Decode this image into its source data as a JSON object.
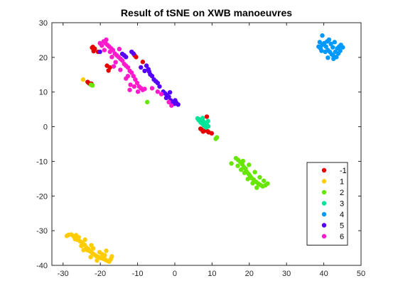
{
  "chart_data": {
    "type": "scatter",
    "title": "Result of tSNE on XWB manoeuvres",
    "xlabel": "",
    "ylabel": "",
    "xlim": [
      -33,
      50
    ],
    "ylim": [
      -40,
      30
    ],
    "xticks": [
      -30,
      -20,
      -10,
      0,
      10,
      20,
      30,
      40,
      50
    ],
    "yticks": [
      -40,
      -30,
      -20,
      -10,
      0,
      10,
      20,
      30
    ],
    "grid": false,
    "legend_position": "lower-right",
    "series": [
      {
        "name": "-1",
        "color": "#e60000",
        "points": [
          [
            -22,
            23
          ],
          [
            -21.5,
            22.5
          ],
          [
            -21.8,
            21.8
          ],
          [
            -22.2,
            22.8
          ],
          [
            -20.6,
            21.6
          ],
          [
            -17.8,
            16.2
          ],
          [
            -17.4,
            17.1
          ],
          [
            -18.2,
            17.6
          ],
          [
            -10.8,
            20.6
          ],
          [
            -10.4,
            20.1
          ],
          [
            -8.6,
            18.7
          ],
          [
            -22.4,
            12.4
          ],
          [
            -23.4,
            12.9
          ],
          [
            -23.0,
            12.5
          ],
          [
            8.6,
            2.9
          ],
          [
            6.9,
            -0.6
          ],
          [
            7.6,
            -1.4
          ],
          [
            8.2,
            -1.1
          ],
          [
            9.1,
            -1.6
          ],
          [
            9.9,
            -1.9
          ],
          [
            7.3,
            -0.9
          ],
          [
            8.8,
            -1.3
          ]
        ]
      },
      {
        "name": "1",
        "color": "#ffcc00",
        "points": [
          [
            -24.6,
            13.6
          ],
          [
            -29,
            -31.5
          ],
          [
            -28.5,
            -31.2
          ],
          [
            -27.8,
            -31.1
          ],
          [
            -27.2,
            -31.6
          ],
          [
            -26.5,
            -31.3
          ],
          [
            -25.8,
            -31.9
          ],
          [
            -26.2,
            -32.6
          ],
          [
            -25.4,
            -33.1
          ],
          [
            -24.8,
            -33.5
          ],
          [
            -24.2,
            -34.1
          ],
          [
            -23.8,
            -34.8
          ],
          [
            -23.2,
            -35.3
          ],
          [
            -22.8,
            -35.9
          ],
          [
            -22.2,
            -36.4
          ],
          [
            -21.6,
            -36.9
          ],
          [
            -21.1,
            -37.3
          ],
          [
            -20.5,
            -37.6
          ],
          [
            -19.8,
            -37.9
          ],
          [
            -19.2,
            -38.1
          ],
          [
            -18.6,
            -38.4
          ],
          [
            -18.1,
            -38.7
          ],
          [
            -17.6,
            -38.9
          ],
          [
            -17.2,
            -38.2
          ],
          [
            -18.8,
            -37.1
          ],
          [
            -20.2,
            -36.2
          ],
          [
            -22.4,
            -34.2
          ],
          [
            -24.1,
            -32.6
          ],
          [
            -25.1,
            -34.4
          ],
          [
            -23.5,
            -35.6
          ],
          [
            -21.9,
            -35.1
          ],
          [
            -20.9,
            -38.6
          ],
          [
            -19.5,
            -36.8
          ],
          [
            -16.9,
            -37.4
          ],
          [
            -18.4,
            -35.8
          ],
          [
            -26.8,
            -32.4
          ],
          [
            -24.5,
            -35.6
          ],
          [
            -22.6,
            -37.6
          ]
        ]
      },
      {
        "name": "2",
        "color": "#66e600",
        "points": [
          [
            -22.1,
            11.9
          ],
          [
            -22.5,
            12.1
          ],
          [
            -7.4,
            7.1
          ],
          [
            11.3,
            -3.1
          ],
          [
            11.0,
            -3.5
          ],
          [
            15.2,
            -10.6
          ],
          [
            16.4,
            -9.1
          ],
          [
            17.0,
            -9.6
          ],
          [
            17.6,
            -10.2
          ],
          [
            18.1,
            -10.8
          ],
          [
            18.5,
            -11.6
          ],
          [
            19.0,
            -12.1
          ],
          [
            19.3,
            -13.0
          ],
          [
            19.8,
            -13.6
          ],
          [
            20.2,
            -14.2
          ],
          [
            20.6,
            -14.8
          ],
          [
            21.2,
            -15.3
          ],
          [
            21.8,
            -15.9
          ],
          [
            22.4,
            -16.4
          ],
          [
            23.0,
            -16.8
          ],
          [
            23.6,
            -17.2
          ],
          [
            24.3,
            -16.9
          ],
          [
            24.9,
            -16.4
          ],
          [
            22.0,
            -17.6
          ],
          [
            20.9,
            -16.3
          ],
          [
            19.6,
            -15.1
          ],
          [
            18.7,
            -13.3
          ],
          [
            17.8,
            -12.4
          ],
          [
            16.9,
            -11.3
          ],
          [
            18.3,
            -9.9
          ],
          [
            19.9,
            -11.0
          ],
          [
            21.5,
            -13.1
          ],
          [
            22.8,
            -14.6
          ],
          [
            23.9,
            -15.6
          ]
        ]
      },
      {
        "name": "3",
        "color": "#00e699",
        "points": [
          [
            6.1,
            2.4
          ],
          [
            6.6,
            2.1
          ],
          [
            7.1,
            2.0
          ],
          [
            7.6,
            1.6
          ],
          [
            8.1,
            1.1
          ],
          [
            8.6,
            0.6
          ],
          [
            9.0,
            0.1
          ],
          [
            7.3,
            0.9
          ],
          [
            6.9,
            1.3
          ],
          [
            7.8,
            0.3
          ],
          [
            8.4,
            -0.2
          ],
          [
            6.4,
            1.9
          ],
          [
            8.9,
            1.6
          ],
          [
            7.5,
            2.5
          ]
        ]
      },
      {
        "name": "4",
        "color": "#0099ff",
        "points": [
          [
            39.6,
            26.3
          ],
          [
            38.6,
            23.1
          ],
          [
            39.1,
            22.6
          ],
          [
            39.6,
            23.6
          ],
          [
            40.1,
            24.1
          ],
          [
            40.6,
            23.1
          ],
          [
            41.1,
            22.1
          ],
          [
            41.6,
            21.6
          ],
          [
            42.1,
            20.9
          ],
          [
            42.6,
            20.4
          ],
          [
            43.1,
            21.6
          ],
          [
            43.6,
            22.6
          ],
          [
            44.1,
            23.1
          ],
          [
            44.6,
            23.6
          ],
          [
            45.1,
            22.9
          ],
          [
            41.9,
            23.9
          ],
          [
            40.9,
            24.6
          ],
          [
            42.4,
            22.9
          ],
          [
            43.9,
            21.1
          ],
          [
            40.4,
            21.6
          ],
          [
            41.4,
            25.1
          ],
          [
            42.9,
            24.4
          ],
          [
            44.4,
            21.9
          ],
          [
            39.4,
            21.9
          ],
          [
            41.1,
            19.9
          ],
          [
            42.6,
            19.6
          ],
          [
            43.4,
            20.1
          ],
          [
            38.9,
            24.4
          ]
        ]
      },
      {
        "name": "5",
        "color": "#5500ff",
        "points": [
          [
            -20.1,
            21.6
          ],
          [
            -14.1,
            21.0
          ],
          [
            -13.6,
            20.6
          ],
          [
            -13.1,
            20.1
          ],
          [
            -11.6,
            21.6
          ],
          [
            -11.1,
            21.1
          ],
          [
            -8.1,
            16.1
          ],
          [
            -7.6,
            17.6
          ],
          [
            -7.1,
            16.6
          ],
          [
            -6.6,
            15.1
          ],
          [
            -6.1,
            14.6
          ],
          [
            -5.6,
            13.6
          ],
          [
            -5.1,
            13.1
          ],
          [
            -4.6,
            12.6
          ],
          [
            -3.1,
            10.1
          ],
          [
            -2.6,
            9.6
          ],
          [
            -2.1,
            9.1
          ],
          [
            -1.6,
            8.6
          ],
          [
            -1.1,
            7.6
          ],
          [
            -0.6,
            7.1
          ],
          [
            -0.1,
            6.6
          ],
          [
            0.4,
            6.9
          ],
          [
            0.9,
            6.4
          ],
          [
            -9.1,
            17.1
          ],
          [
            -6.9,
            15.9
          ],
          [
            -4.1,
            11.6
          ],
          [
            -2.3,
            8.3
          ],
          [
            -1.3,
            9.9
          ],
          [
            0.1,
            7.6
          ]
        ]
      },
      {
        "name": "6",
        "color": "#ff1acc",
        "points": [
          [
            -19.1,
            24.6
          ],
          [
            -18.6,
            24.1
          ],
          [
            -18.1,
            23.6
          ],
          [
            -17.6,
            23.1
          ],
          [
            -17.1,
            22.6
          ],
          [
            -16.6,
            22.1
          ],
          [
            -16.1,
            21.1
          ],
          [
            -15.6,
            20.6
          ],
          [
            -15.1,
            20.1
          ],
          [
            -14.6,
            19.6
          ],
          [
            -14.1,
            19.1
          ],
          [
            -13.6,
            18.1
          ],
          [
            -13.1,
            17.6
          ],
          [
            -12.6,
            17.1
          ],
          [
            -12.1,
            16.1
          ],
          [
            -11.6,
            15.6
          ],
          [
            -11.1,
            14.6
          ],
          [
            -10.6,
            13.6
          ],
          [
            -10.1,
            12.6
          ],
          [
            -9.6,
            11.6
          ],
          [
            -9.1,
            11.1
          ],
          [
            -8.6,
            10.6
          ],
          [
            -8.1,
            10.9
          ],
          [
            -11.9,
            12.1
          ],
          [
            -13.1,
            13.9
          ],
          [
            -14.6,
            16.4
          ],
          [
            -16.9,
            20.1
          ],
          [
            -18.9,
            22.1
          ],
          [
            -19.6,
            23.4
          ],
          [
            -17.4,
            21.6
          ],
          [
            -15.9,
            18.6
          ],
          [
            -12.6,
            14.6
          ],
          [
            -10.9,
            11.6
          ],
          [
            -9.9,
            10.1
          ],
          [
            -6.1,
            11.1
          ],
          [
            -4.6,
            10.1
          ],
          [
            -3.6,
            9.4
          ],
          [
            -1.6,
            7.1
          ],
          [
            -0.9,
            6.1
          ],
          [
            -12.1,
            10.6
          ],
          [
            -16.4,
            17.4
          ],
          [
            -14.9,
            22.4
          ],
          [
            -18.4,
            25.1
          ],
          [
            -20.1,
            24.1
          ]
        ]
      }
    ]
  }
}
